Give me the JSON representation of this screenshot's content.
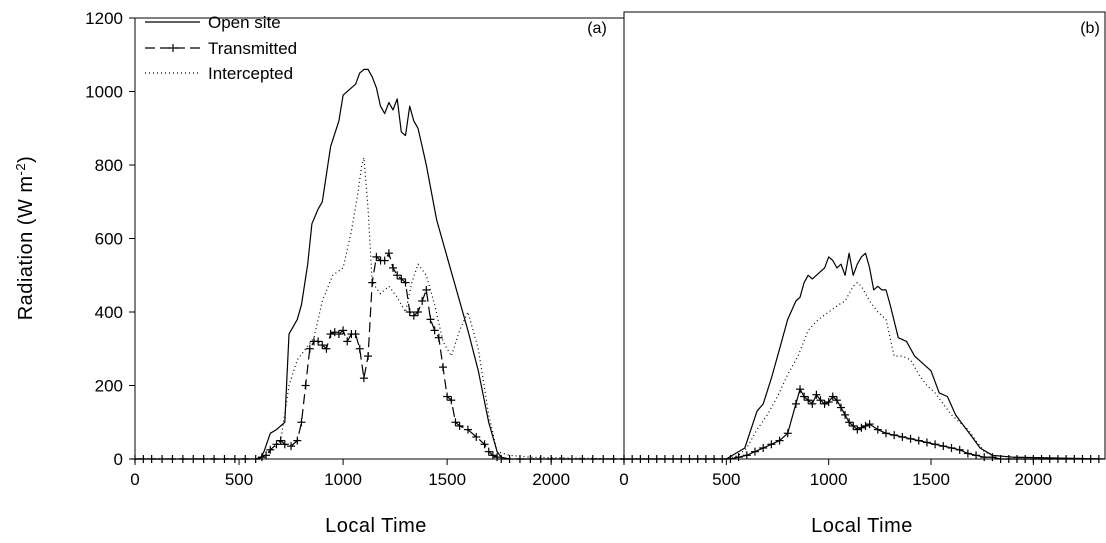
{
  "chart_data": [
    {
      "type": "line",
      "panel_label": "(a)",
      "xlabel": "Local Time",
      "ylabel": "Radiation (W m",
      "ylabel_sup": "-2",
      "ylabel_end": ")",
      "xlim": [
        0,
        2350
      ],
      "ylim": [
        0,
        1200
      ],
      "xticks": [
        0,
        500,
        1000,
        1500,
        2000
      ],
      "yticks": [
        0,
        200,
        400,
        600,
        800,
        1000,
        1200
      ],
      "legend": {
        "position": "top-left"
      },
      "series": [
        {
          "name": "Open site",
          "style": "solid",
          "x": [
            0,
            300,
            600,
            620,
            650,
            680,
            720,
            740,
            780,
            800,
            830,
            850,
            880,
            900,
            940,
            980,
            1000,
            1040,
            1060,
            1080,
            1100,
            1120,
            1140,
            1160,
            1180,
            1200,
            1220,
            1240,
            1260,
            1280,
            1300,
            1320,
            1340,
            1360,
            1380,
            1400,
            1450,
            1500,
            1550,
            1600,
            1650,
            1700,
            1740,
            1760,
            1800,
            2000,
            2350
          ],
          "y": [
            0,
            0,
            0,
            20,
            70,
            80,
            100,
            340,
            380,
            420,
            530,
            640,
            680,
            700,
            850,
            920,
            990,
            1010,
            1020,
            1050,
            1060,
            1060,
            1040,
            1010,
            960,
            940,
            970,
            950,
            980,
            890,
            880,
            960,
            920,
            900,
            850,
            800,
            650,
            550,
            450,
            350,
            240,
            100,
            20,
            5,
            0,
            0,
            0
          ]
        },
        {
          "name": "Transmitted",
          "style": "dashed-marker",
          "x": [
            0,
            40,
            80,
            130,
            180,
            230,
            280,
            330,
            380,
            430,
            480,
            530,
            580,
            610,
            630,
            650,
            680,
            700,
            720,
            750,
            780,
            800,
            820,
            840,
            860,
            880,
            900,
            920,
            940,
            960,
            980,
            1000,
            1020,
            1040,
            1060,
            1080,
            1100,
            1120,
            1140,
            1160,
            1180,
            1200,
            1220,
            1240,
            1260,
            1280,
            1300,
            1320,
            1340,
            1360,
            1380,
            1400,
            1420,
            1440,
            1460,
            1480,
            1500,
            1520,
            1540,
            1560,
            1600,
            1640,
            1680,
            1700,
            1720,
            1740,
            1760,
            1800,
            1850,
            1900,
            1950,
            2000,
            2050,
            2100,
            2150,
            2200,
            2250,
            2300,
            2350
          ],
          "y": [
            0,
            0,
            0,
            0,
            0,
            0,
            0,
            0,
            0,
            0,
            0,
            0,
            0,
            5,
            10,
            25,
            40,
            50,
            40,
            35,
            50,
            100,
            200,
            300,
            320,
            320,
            310,
            300,
            340,
            345,
            340,
            350,
            320,
            340,
            340,
            300,
            220,
            280,
            480,
            550,
            540,
            540,
            560,
            520,
            500,
            490,
            480,
            400,
            390,
            400,
            430,
            460,
            380,
            350,
            330,
            250,
            170,
            160,
            100,
            90,
            80,
            60,
            40,
            20,
            10,
            5,
            0,
            0,
            0,
            0,
            0,
            0,
            0,
            0,
            0,
            0,
            0,
            0,
            0
          ]
        },
        {
          "name": "Intercepted",
          "style": "dotted",
          "x": [
            0,
            600,
            650,
            700,
            740,
            780,
            820,
            860,
            900,
            950,
            1000,
            1040,
            1070,
            1090,
            1100,
            1120,
            1140,
            1180,
            1220,
            1260,
            1300,
            1330,
            1360,
            1400,
            1440,
            1480,
            1520,
            1560,
            1600,
            1650,
            1700,
            1740,
            1800,
            1900,
            2350
          ],
          "y": [
            0,
            0,
            20,
            50,
            200,
            270,
            300,
            330,
            430,
            500,
            520,
            620,
            720,
            800,
            820,
            680,
            480,
            450,
            470,
            440,
            400,
            480,
            530,
            500,
            420,
            320,
            280,
            350,
            400,
            300,
            120,
            20,
            10,
            5,
            0
          ]
        }
      ]
    },
    {
      "type": "line",
      "panel_label": "(b)",
      "xlabel": "Local Time",
      "xlim": [
        0,
        2350
      ],
      "ylim": [
        0,
        1200
      ],
      "xticks": [
        0,
        500,
        1000,
        1500,
        2000
      ],
      "series": [
        {
          "name": "Open site",
          "style": "solid",
          "x": [
            0,
            400,
            500,
            560,
            590,
            620,
            650,
            680,
            720,
            760,
            800,
            840,
            860,
            880,
            900,
            920,
            940,
            960,
            980,
            1000,
            1020,
            1040,
            1060,
            1080,
            1100,
            1120,
            1140,
            1160,
            1180,
            1200,
            1220,
            1240,
            1260,
            1280,
            1300,
            1340,
            1380,
            1420,
            1460,
            1500,
            1540,
            1580,
            1620,
            1660,
            1700,
            1740,
            1800,
            1900,
            2350
          ],
          "y": [
            0,
            0,
            0,
            20,
            30,
            80,
            130,
            150,
            220,
            300,
            380,
            430,
            440,
            480,
            500,
            490,
            500,
            510,
            520,
            550,
            540,
            520,
            530,
            500,
            560,
            500,
            530,
            550,
            560,
            520,
            460,
            470,
            460,
            460,
            420,
            330,
            320,
            280,
            260,
            240,
            180,
            170,
            120,
            90,
            60,
            30,
            10,
            5,
            0
          ]
        },
        {
          "name": "Transmitted",
          "style": "solid-marker",
          "x": [
            0,
            40,
            80,
            120,
            160,
            200,
            240,
            280,
            320,
            360,
            400,
            440,
            480,
            520,
            560,
            600,
            640,
            680,
            720,
            760,
            800,
            840,
            860,
            880,
            900,
            920,
            940,
            960,
            980,
            1000,
            1020,
            1040,
            1060,
            1080,
            1100,
            1120,
            1140,
            1160,
            1180,
            1200,
            1240,
            1280,
            1320,
            1360,
            1400,
            1440,
            1480,
            1520,
            1560,
            1600,
            1640,
            1680,
            1720,
            1760,
            1800,
            1840,
            1880,
            1920,
            1960,
            2000,
            2040,
            2080,
            2120,
            2160,
            2200,
            2240,
            2280,
            2320
          ],
          "y": [
            0,
            0,
            0,
            0,
            0,
            0,
            0,
            0,
            0,
            0,
            0,
            0,
            0,
            0,
            5,
            10,
            20,
            30,
            40,
            50,
            70,
            150,
            190,
            170,
            160,
            150,
            175,
            160,
            150,
            155,
            170,
            160,
            140,
            120,
            100,
            90,
            80,
            85,
            90,
            95,
            80,
            70,
            65,
            60,
            55,
            50,
            45,
            40,
            35,
            30,
            25,
            15,
            10,
            5,
            5,
            0,
            0,
            0,
            0,
            0,
            0,
            0,
            0,
            0,
            0,
            0,
            0,
            0
          ]
        },
        {
          "name": "Intercepted",
          "style": "dotted",
          "x": [
            0,
            500,
            560,
            600,
            650,
            700,
            750,
            800,
            850,
            900,
            950,
            1000,
            1050,
            1080,
            1100,
            1120,
            1140,
            1160,
            1200,
            1240,
            1280,
            1320,
            1360,
            1400,
            1440,
            1480,
            1520,
            1560,
            1600,
            1640,
            1680,
            1720,
            1760,
            1800,
            1900,
            2350
          ],
          "y": [
            0,
            0,
            10,
            30,
            80,
            120,
            170,
            230,
            280,
            350,
            380,
            400,
            420,
            430,
            450,
            470,
            480,
            470,
            430,
            400,
            380,
            280,
            280,
            270,
            230,
            200,
            180,
            150,
            120,
            100,
            80,
            50,
            20,
            10,
            5,
            0
          ]
        }
      ]
    }
  ]
}
